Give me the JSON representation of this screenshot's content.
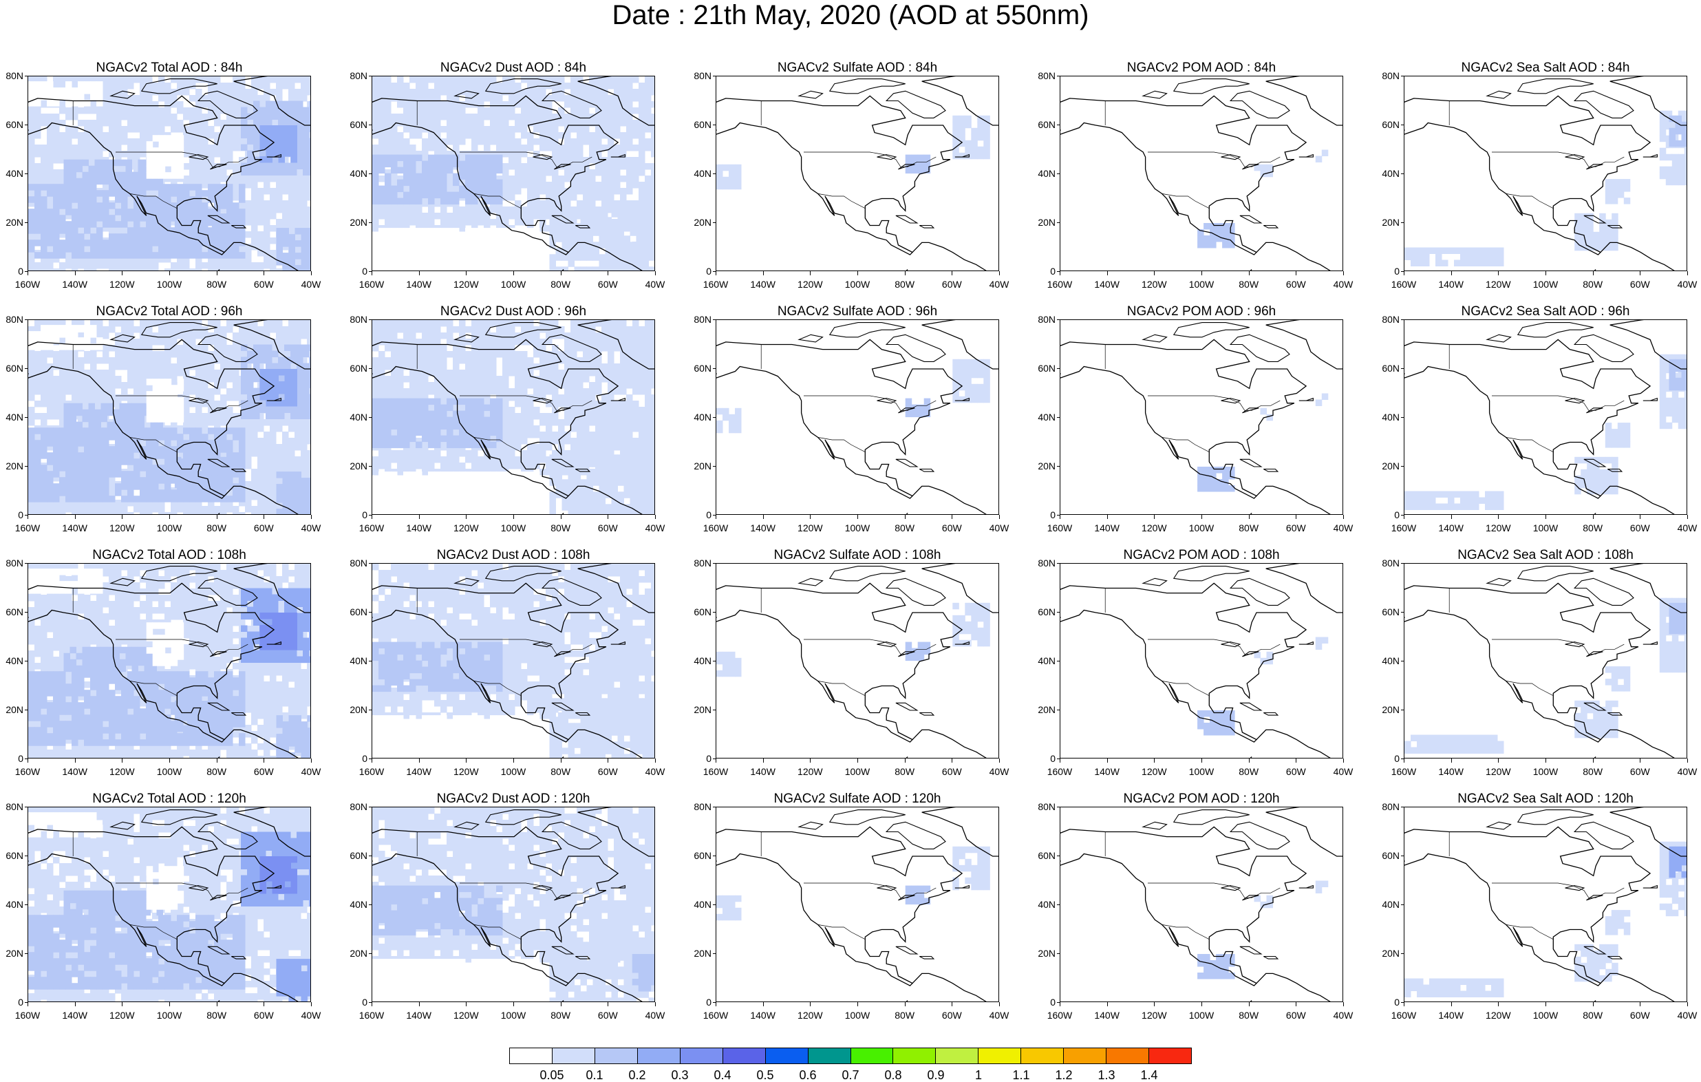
{
  "title": "Date : 21th May, 2020 (AOD at 550nm)",
  "axes": {
    "lat_labels": [
      "80N",
      "60N",
      "40N",
      "20N",
      "0"
    ],
    "lon_labels": [
      "160W",
      "140W",
      "120W",
      "100W",
      "80W",
      "60W",
      "40W"
    ]
  },
  "panels": [
    {
      "title": "NGACv2 Total AOD : 84h",
      "species": "total",
      "hour": 84
    },
    {
      "title": "NGACv2 Dust AOD : 84h",
      "species": "dust",
      "hour": 84
    },
    {
      "title": "NGACv2 Sulfate AOD : 84h",
      "species": "sulfate",
      "hour": 84
    },
    {
      "title": "NGACv2 POM AOD : 84h",
      "species": "pom",
      "hour": 84
    },
    {
      "title": "NGACv2 Sea Salt AOD : 84h",
      "species": "seasalt",
      "hour": 84
    },
    {
      "title": "NGACv2 Total AOD : 96h",
      "species": "total",
      "hour": 96
    },
    {
      "title": "NGACv2 Dust AOD : 96h",
      "species": "dust",
      "hour": 96
    },
    {
      "title": "NGACv2 Sulfate AOD : 96h",
      "species": "sulfate",
      "hour": 96
    },
    {
      "title": "NGACv2 POM AOD : 96h",
      "species": "pom",
      "hour": 96
    },
    {
      "title": "NGACv2 Sea Salt AOD : 96h",
      "species": "seasalt",
      "hour": 96
    },
    {
      "title": "NGACv2 Total AOD : 108h",
      "species": "total",
      "hour": 108
    },
    {
      "title": "NGACv2 Dust AOD : 108h",
      "species": "dust",
      "hour": 108
    },
    {
      "title": "NGACv2 Sulfate AOD : 108h",
      "species": "sulfate",
      "hour": 108
    },
    {
      "title": "NGACv2 POM AOD : 108h",
      "species": "pom",
      "hour": 108
    },
    {
      "title": "NGACv2 Sea Salt AOD : 108h",
      "species": "seasalt",
      "hour": 108
    },
    {
      "title": "NGACv2 Total AOD : 120h",
      "species": "total",
      "hour": 120
    },
    {
      "title": "NGACv2 Dust AOD : 120h",
      "species": "dust",
      "hour": 120
    },
    {
      "title": "NGACv2 Sulfate AOD : 120h",
      "species": "sulfate",
      "hour": 120
    },
    {
      "title": "NGACv2 POM AOD : 120h",
      "species": "pom",
      "hour": 120
    },
    {
      "title": "NGACv2 Sea Salt  AOD : 120h",
      "species": "seasalt",
      "hour": 120
    }
  ],
  "colorbar": {
    "colors": [
      "#ffffff",
      "#d2defa",
      "#b6c8f6",
      "#92acf5",
      "#7b90f2",
      "#5a63e8",
      "#0a5ef0",
      "#00968e",
      "#48f000",
      "#90f000",
      "#c0f040",
      "#f0f000",
      "#f8c800",
      "#f8a000",
      "#f87800",
      "#f82810"
    ],
    "labels": [
      "0.05",
      "0.1",
      "0.2",
      "0.3",
      "0.4",
      "0.5",
      "0.6",
      "0.7",
      "0.8",
      "0.9",
      "1",
      "1.1",
      "1.2",
      "1.3",
      "1.4"
    ]
  }
}
